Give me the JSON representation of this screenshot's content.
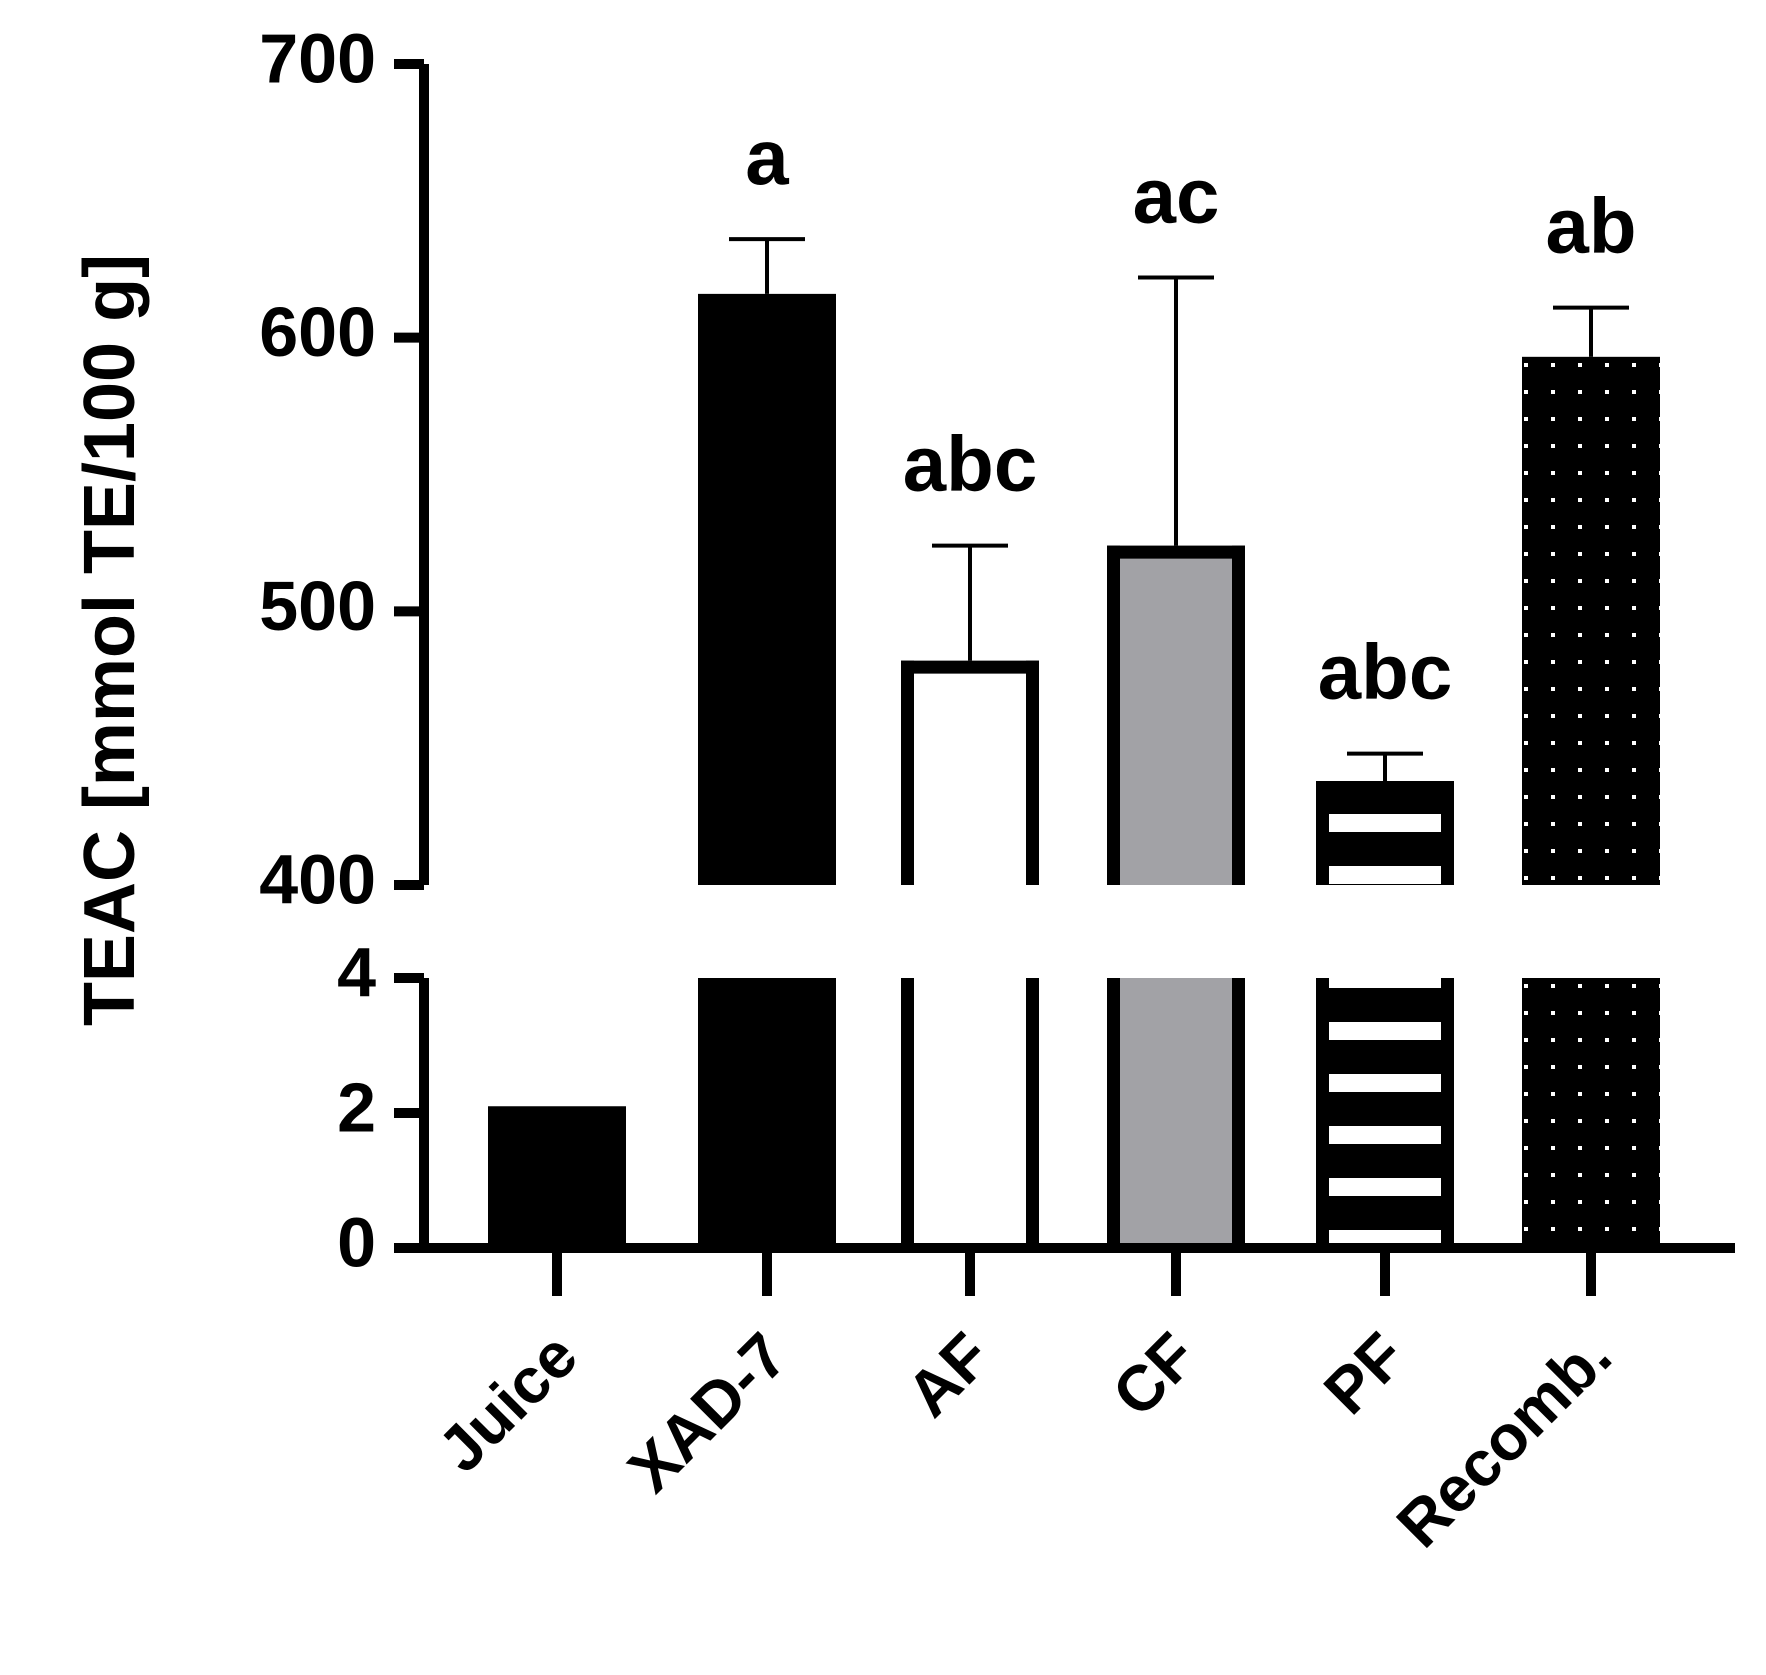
{
  "chart_data": {
    "type": "bar",
    "title": "",
    "xlabel": "",
    "ylabel": "TEAC [mmol TE/100 g]",
    "broken_axis": true,
    "segments": [
      {
        "ylim": [
          0,
          4
        ],
        "ticks": [
          "0",
          "2",
          "4"
        ]
      },
      {
        "ylim": [
          400,
          700
        ],
        "ticks": [
          "400",
          "500",
          "600",
          "700"
        ]
      }
    ],
    "grid": false,
    "legend": "none",
    "categories": [
      "Juice",
      "XAD-7",
      "AF",
      "CF",
      "PF",
      "Recomb."
    ],
    "values": [
      2.1,
      616,
      482,
      524,
      438,
      593
    ],
    "errors": [
      null,
      20,
      42,
      98,
      10,
      18
    ],
    "significance": [
      "",
      "a",
      "abc",
      "ac",
      "abc",
      "ab"
    ],
    "fills": [
      "solid-black",
      "solid-black",
      "white",
      "gray",
      "horizontal-stripes",
      "dotted"
    ],
    "colors": {
      "black": "#000000",
      "gray": "#a2a2a6",
      "white": "#ffffff"
    }
  }
}
